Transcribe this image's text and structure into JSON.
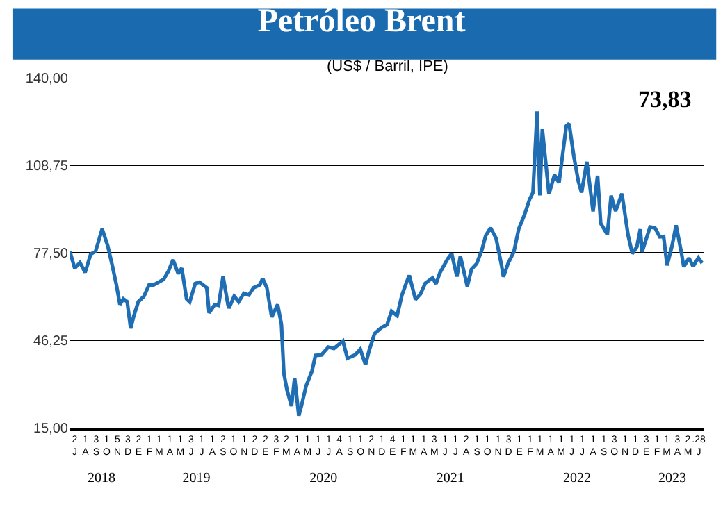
{
  "chart_data": {
    "type": "line",
    "title": "Petróleo Brent",
    "subtitle": "(US$ / Barril, IPE)",
    "annotations": [
      "73,83"
    ],
    "x": [
      "2018-07-02",
      "2018-07-16",
      "2018-07-31",
      "2018-08-15",
      "2018-08-31",
      "2018-09-14",
      "2018-10-03",
      "2018-10-19",
      "2018-11-01",
      "2018-11-13",
      "2018-11-23",
      "2018-12-03",
      "2018-12-14",
      "2018-12-24",
      "2019-01-02",
      "2019-01-15",
      "2019-01-31",
      "2019-02-15",
      "2019-02-28",
      "2019-03-15",
      "2019-03-29",
      "2019-04-12",
      "2019-04-25",
      "2019-05-10",
      "2019-05-20",
      "2019-06-03",
      "2019-06-12",
      "2019-06-28",
      "2019-07-10",
      "2019-07-31",
      "2019-08-07",
      "2019-08-23",
      "2019-09-03",
      "2019-09-16",
      "2019-09-30",
      "2019-10-03",
      "2019-10-18",
      "2019-10-31",
      "2019-11-15",
      "2019-11-29",
      "2019-12-13",
      "2019-12-31",
      "2020-01-08",
      "2020-01-20",
      "2020-02-03",
      "2020-02-20",
      "2020-03-02",
      "2020-03-09",
      "2020-03-18",
      "2020-03-31",
      "2020-04-09",
      "2020-04-21",
      "2020-04-28",
      "2020-05-12",
      "2020-05-29",
      "2020-06-08",
      "2020-06-25",
      "2020-07-15",
      "2020-07-31",
      "2020-08-26",
      "2020-09-08",
      "2020-09-30",
      "2020-10-15",
      "2020-10-30",
      "2020-11-09",
      "2020-11-25",
      "2020-12-15",
      "2020-12-31",
      "2021-01-13",
      "2021-01-29",
      "2021-02-12",
      "2021-02-25",
      "2021-03-05",
      "2021-03-23",
      "2021-04-06",
      "2021-04-20",
      "2021-05-11",
      "2021-05-21",
      "2021-06-01",
      "2021-06-23",
      "2021-07-05",
      "2021-07-20",
      "2021-07-30",
      "2021-08-19",
      "2021-08-31",
      "2021-09-15",
      "2021-09-30",
      "2021-10-11",
      "2021-10-25",
      "2021-11-10",
      "2021-11-26",
      "2021-12-01",
      "2021-12-15",
      "2021-12-31",
      "2022-01-14",
      "2022-01-31",
      "2022-02-14",
      "2022-02-24",
      "2022-03-08",
      "2022-03-16",
      "2022-03-23",
      "2022-04-11",
      "2022-04-27",
      "2022-05-10",
      "2022-05-31",
      "2022-06-08",
      "2022-06-22",
      "2022-07-05",
      "2022-07-14",
      "2022-07-29",
      "2022-08-16",
      "2022-08-29",
      "2022-09-07",
      "2022-09-26",
      "2022-10-07",
      "2022-10-20",
      "2022-11-07",
      "2022-11-25",
      "2022-12-07",
      "2022-12-20",
      "2022-12-30",
      "2023-01-04",
      "2023-01-27",
      "2023-02-10",
      "2023-02-24",
      "2023-03-07",
      "2023-03-17",
      "2023-03-31",
      "2023-04-12",
      "2023-04-27",
      "2023-05-04",
      "2023-05-19",
      "2023-05-31",
      "2023-06-15",
      "2023-06-26"
    ],
    "series": [
      {
        "color": "#1f6db3",
        "values": [
          78,
          72,
          74,
          70.5,
          77,
          78,
          86,
          80,
          73,
          66,
          59,
          61,
          60,
          50.5,
          54.9,
          60,
          61.9,
          66,
          66,
          67,
          68,
          71,
          75,
          70,
          72,
          61,
          59.9,
          66.5,
          67,
          65,
          56,
          59,
          58.7,
          69,
          59,
          57.7,
          62,
          60,
          63,
          62.4,
          65,
          66,
          68.3,
          65,
          54.5,
          59,
          51.9,
          34.4,
          28.5,
          22.7,
          32.8,
          19.3,
          22.5,
          29.9,
          35.3,
          40.8,
          41,
          43.8,
          43.3,
          45.9,
          39.8,
          41,
          43,
          37.5,
          42.4,
          48.6,
          50.8,
          51.8,
          56.6,
          55,
          62.4,
          66.9,
          69.4,
          60.8,
          62.7,
          66.6,
          68.5,
          66.4,
          70.3,
          75.2,
          77.2,
          69,
          76.3,
          65.5,
          71.6,
          73.6,
          78.5,
          83.6,
          86.4,
          82.6,
          72.7,
          68.9,
          73.9,
          77.8,
          86,
          91.2,
          96.5,
          99,
          128,
          98,
          121.6,
          98.5,
          105.3,
          102.5,
          122.8,
          123.6,
          111.7,
          102.8,
          99,
          110,
          92.3,
          105,
          88,
          84,
          97.9,
          92.4,
          98.6,
          83.6,
          77.2,
          79.6,
          85.9,
          77.8,
          86.7,
          86.4,
          83.2,
          83.3,
          73,
          79.8,
          87.3,
          77.7,
          72.5,
          75.6,
          72.6,
          75.7,
          73.8
        ]
      }
    ],
    "xlim": [
      "2018-07-01",
      "2023-06-30"
    ],
    "xticks": [
      {
        "value": "2018-07-16",
        "label": "2\nJ"
      },
      {
        "value": "2018-08-16",
        "label": "1\nA"
      },
      {
        "value": "2018-09-16",
        "label": "3\nS"
      },
      {
        "value": "2018-10-16",
        "label": "1\nO"
      },
      {
        "value": "2018-11-16",
        "label": "5\nN"
      },
      {
        "value": "2018-12-16",
        "label": "3\nD"
      },
      {
        "value": "2019-01-16",
        "label": "2\nE"
      },
      {
        "value": "2019-02-16",
        "label": "1\nF"
      },
      {
        "value": "2019-03-16",
        "label": "1\nM"
      },
      {
        "value": "2019-04-16",
        "label": "1\nA"
      },
      {
        "value": "2019-05-16",
        "label": "1\nM"
      },
      {
        "value": "2019-06-16",
        "label": "3\nJ"
      },
      {
        "value": "2019-07-16",
        "label": "1\nJ"
      },
      {
        "value": "2019-08-16",
        "label": "1\nA"
      },
      {
        "value": "2019-09-16",
        "label": "2\nS"
      },
      {
        "value": "2019-10-16",
        "label": "1\nO"
      },
      {
        "value": "2019-11-16",
        "label": "1\nN"
      },
      {
        "value": "2019-12-16",
        "label": "2\nD"
      },
      {
        "value": "2020-01-16",
        "label": "2\nE"
      },
      {
        "value": "2020-02-16",
        "label": "3\nF"
      },
      {
        "value": "2020-03-16",
        "label": "2\nM"
      },
      {
        "value": "2020-04-16",
        "label": "1\nA"
      },
      {
        "value": "2020-05-16",
        "label": "1\nM"
      },
      {
        "value": "2020-06-16",
        "label": "1\nJ"
      },
      {
        "value": "2020-07-16",
        "label": "1\nJ"
      },
      {
        "value": "2020-08-16",
        "label": "4\nA"
      },
      {
        "value": "2020-09-16",
        "label": "1\nS"
      },
      {
        "value": "2020-10-16",
        "label": "1\nO"
      },
      {
        "value": "2020-11-16",
        "label": "2\nN"
      },
      {
        "value": "2020-12-16",
        "label": "1\nD"
      },
      {
        "value": "2021-01-16",
        "label": "4\nE"
      },
      {
        "value": "2021-02-16",
        "label": "1\nF"
      },
      {
        "value": "2021-03-16",
        "label": "1\nM"
      },
      {
        "value": "2021-04-16",
        "label": "1\nA"
      },
      {
        "value": "2021-05-16",
        "label": "3\nM"
      },
      {
        "value": "2021-06-16",
        "label": "1\nJ"
      },
      {
        "value": "2021-07-16",
        "label": "1\nJ"
      },
      {
        "value": "2021-08-16",
        "label": "2\nA"
      },
      {
        "value": "2021-09-16",
        "label": "1\nS"
      },
      {
        "value": "2021-10-16",
        "label": "1\nO"
      },
      {
        "value": "2021-11-16",
        "label": "1\nN"
      },
      {
        "value": "2021-12-16",
        "label": "3\nD"
      },
      {
        "value": "2022-01-16",
        "label": "1\nE"
      },
      {
        "value": "2022-02-16",
        "label": "1\nF"
      },
      {
        "value": "2022-03-16",
        "label": "1\nM"
      },
      {
        "value": "2022-04-16",
        "label": "1\nA"
      },
      {
        "value": "2022-05-16",
        "label": "1\nM"
      },
      {
        "value": "2022-06-16",
        "label": "1\nJ"
      },
      {
        "value": "2022-07-16",
        "label": "1\nJ"
      },
      {
        "value": "2022-08-16",
        "label": "1\nA"
      },
      {
        "value": "2022-09-16",
        "label": "1\nS"
      },
      {
        "value": "2022-10-16",
        "label": "3\nO"
      },
      {
        "value": "2022-11-16",
        "label": "1\nN"
      },
      {
        "value": "2022-12-16",
        "label": "1\nD"
      },
      {
        "value": "2023-01-16",
        "label": "3\nE"
      },
      {
        "value": "2023-02-16",
        "label": "1\nF"
      },
      {
        "value": "2023-03-16",
        "label": "1\nM"
      },
      {
        "value": "2023-04-16",
        "label": "3\nA"
      },
      {
        "value": "2023-05-16",
        "label": "2\nM"
      },
      {
        "value": "2023-06-16",
        "label": ".28\nJ"
      }
    ],
    "x2lim": [
      "2018-07-01",
      "2023-06-30"
    ],
    "x2ticks": [
      {
        "value": "2018-10-01",
        "label": "2018"
      },
      {
        "value": "2019-07-01",
        "label": "2019"
      },
      {
        "value": "2020-07-01",
        "label": "2020"
      },
      {
        "value": "2021-07-01",
        "label": "2021"
      },
      {
        "value": "2022-07-01",
        "label": "2022"
      },
      {
        "value": "2023-04-01",
        "label": "2023"
      }
    ],
    "ylim": [
      15,
      140
    ],
    "yticks": [
      {
        "value": 15,
        "label": "15,00"
      },
      {
        "value": 46.25,
        "label": "46,25"
      },
      {
        "value": 77.5,
        "label": "77,50"
      },
      {
        "value": 108.75,
        "label": "108,75"
      },
      {
        "value": 140,
        "label": "140,00"
      }
    ],
    "grid": "y",
    "marker": "none",
    "line_style": "solid"
  }
}
